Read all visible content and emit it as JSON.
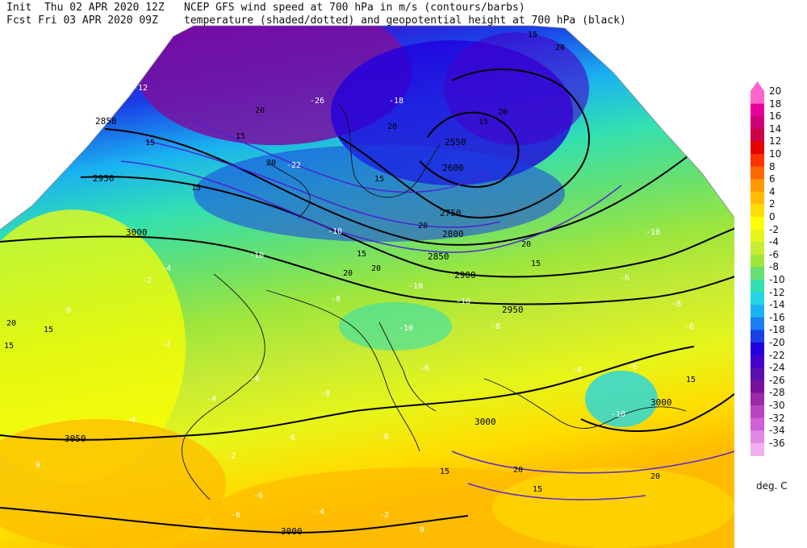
{
  "header": {
    "init": "Init  Thu 02 APR 2020 12Z",
    "fcst": "Fcst Fri 03 APR 2020 09Z",
    "title1": "NCEP GFS wind speed at 700 hPa in m/s (contours/barbs)",
    "title2": "temperature (shaded/dotted) and geopotential height at 700 hPa (black)"
  },
  "legend": {
    "units": "deg. C",
    "levels": [
      {
        "label": "20",
        "color": "#ff66cc"
      },
      {
        "label": "18",
        "color": "#e60099"
      },
      {
        "label": "16",
        "color": "#cc0077"
      },
      {
        "label": "14",
        "color": "#cc0044"
      },
      {
        "label": "12",
        "color": "#e60000"
      },
      {
        "label": "10",
        "color": "#ff3300"
      },
      {
        "label": "8",
        "color": "#ff6600"
      },
      {
        "label": "6",
        "color": "#ff9900"
      },
      {
        "label": "4",
        "color": "#ffbb00"
      },
      {
        "label": "2",
        "color": "#ffdd00"
      },
      {
        "label": "0",
        "color": "#ffff00"
      },
      {
        "label": "-2",
        "color": "#e6f51a"
      },
      {
        "label": "-4",
        "color": "#c8eb33"
      },
      {
        "label": "-6",
        "color": "#9fe63c"
      },
      {
        "label": "-8",
        "color": "#66e070"
      },
      {
        "label": "-10",
        "color": "#33e0b0"
      },
      {
        "label": "-12",
        "color": "#22d6e6"
      },
      {
        "label": "-14",
        "color": "#1ab2f0"
      },
      {
        "label": "-16",
        "color": "#1a80f0"
      },
      {
        "label": "-18",
        "color": "#1a40e6"
      },
      {
        "label": "-20",
        "color": "#2200dd"
      },
      {
        "label": "-22",
        "color": "#4400cc"
      },
      {
        "label": "-24",
        "color": "#5a10b0"
      },
      {
        "label": "-26",
        "color": "#7a10a0"
      },
      {
        "label": "-28",
        "color": "#9a2aa8"
      },
      {
        "label": "-30",
        "color": "#b844c0"
      },
      {
        "label": "-32",
        "color": "#d060d8"
      },
      {
        "label": "-34",
        "color": "#e08ae6"
      },
      {
        "label": "-36",
        "color": "#f0b0f0"
      }
    ]
  },
  "map": {
    "height_labels": [
      "2850",
      "2950",
      "3000",
      "3050",
      "3000",
      "2550",
      "2600",
      "2750",
      "2800",
      "2850",
      "2900",
      "2950",
      "3000",
      "3000"
    ],
    "temp_labels": [
      "-4",
      "-2",
      "0",
      "-2",
      "-4",
      "-6",
      "-6",
      "-8",
      "-10",
      "-10",
      "-10",
      "-6",
      "-6",
      "-8",
      "-10",
      "-10",
      "-6",
      "-6",
      "-4",
      "-2",
      "0",
      "-12",
      "-18",
      "-22",
      "-26",
      "-10",
      "-6",
      "-6",
      "-8",
      "-4",
      "-2",
      "0",
      "-6",
      "-10",
      "-8",
      "-6"
    ],
    "wind_labels": [
      "15",
      "20",
      "15",
      "20",
      "15",
      "20",
      "15",
      "20",
      "15",
      "20",
      "20",
      "15",
      "20",
      "15",
      "20",
      "15",
      "20",
      "15",
      "20",
      "15",
      "15",
      "20",
      "15",
      "15",
      "20"
    ]
  }
}
